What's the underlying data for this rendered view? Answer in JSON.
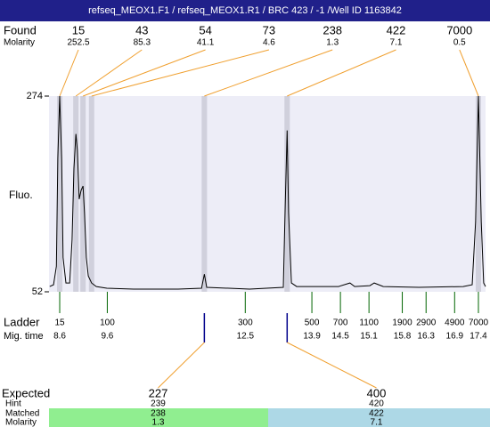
{
  "chart_data": {
    "type": "line",
    "title": "refseq_MEOX1.F1 / refseq_MEOX1.R1 / BRC 423 / -1 /Well ID 1163842",
    "found_label": "Found",
    "molarity_label": "Molarity",
    "peaks": {
      "sizes": [
        15,
        43,
        54,
        73,
        238,
        422,
        7000
      ],
      "molarity": [
        252.5,
        85.3,
        41.1,
        4.6,
        1.3,
        7.1,
        0.5
      ],
      "times": [
        8.6,
        8.94,
        9.09,
        9.27,
        11.64,
        13.38,
        17.4
      ]
    },
    "y_label": "Fluo.",
    "ylim": [
      52,
      274
    ],
    "yticks": [
      274,
      52
    ],
    "xlim": [
      8.375,
      17.55
    ],
    "x": [
      8.39,
      8.47,
      8.53,
      8.56,
      8.6,
      8.64,
      8.67,
      8.73,
      8.81,
      8.86,
      8.9,
      8.94,
      8.97,
      9.01,
      9.05,
      9.09,
      9.12,
      9.16,
      9.2,
      9.27,
      9.37,
      9.59,
      10.15,
      11.09,
      11.58,
      11.64,
      11.69,
      12.59,
      13.3,
      13.34,
      13.38,
      13.41,
      13.47,
      13.58,
      14.09,
      14.46,
      14.7,
      14.8,
      15.12,
      15.21,
      15.4,
      16.15,
      17.08,
      17.27,
      17.34,
      17.4,
      17.46,
      17.51,
      17.55
    ],
    "values": [
      58,
      60,
      81,
      203,
      274,
      203,
      91,
      62,
      62,
      111,
      192,
      231,
      213,
      157,
      167,
      172,
      142,
      91,
      70,
      62,
      58,
      56,
      55,
      55,
      56,
      72,
      57,
      55,
      57,
      152,
      235,
      142,
      62,
      58,
      58,
      58,
      62,
      58,
      59,
      62,
      58,
      57,
      58,
      60,
      131,
      274,
      131,
      62,
      58
    ],
    "color": "#000000",
    "ladder_label": "Ladder",
    "mig_time_label": "Mig. time",
    "ladder": {
      "sizes": [
        15,
        100,
        300,
        500,
        700,
        1100,
        1900,
        2900,
        4900,
        7000
      ],
      "times": [
        8.6,
        9.6,
        12.5,
        13.9,
        14.5,
        15.1,
        15.8,
        16.3,
        16.9,
        17.4
      ]
    },
    "expected_label": "Expected",
    "hint_label": "Hint",
    "matched_label": "Matched",
    "matched_molarity_label": "Molarity",
    "expected": [
      227,
      400
    ],
    "hint": [
      239,
      420
    ],
    "matched": [
      238,
      422
    ],
    "matched_molarity": [
      1.3,
      7.1
    ]
  }
}
